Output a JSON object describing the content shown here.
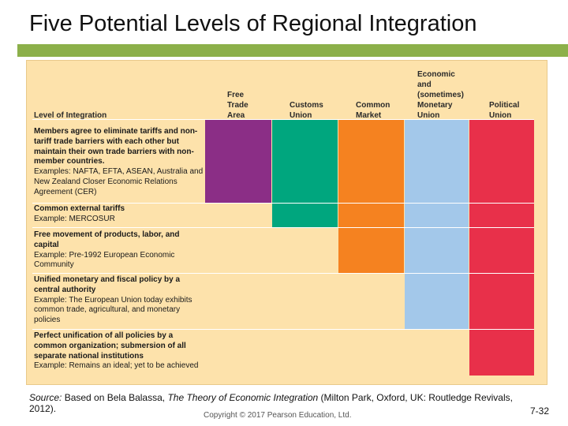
{
  "title": "Five Potential Levels of Regional Integration",
  "header": {
    "level_of_integration": "Level of Integration",
    "columns": [
      {
        "lines": [
          "Free",
          "Trade",
          "Area"
        ],
        "color": "#8b2e86"
      },
      {
        "lines": [
          "Customs",
          "Union"
        ],
        "color": "#00a67e"
      },
      {
        "lines": [
          "Common",
          "Market"
        ],
        "color": "#f58220"
      },
      {
        "lines": [
          "Economic",
          "and",
          "(sometimes)",
          "Monetary",
          "Union"
        ],
        "color": "#a3c8ea"
      },
      {
        "lines": [
          "Political",
          "Union"
        ],
        "color": "#e8304a"
      }
    ]
  },
  "rows": [
    {
      "bold": "Members agree to eliminate tariffs and non-tariff trade barriers with each other but maintain their own trade barriers with non-member countries.",
      "example": "Examples: NAFTA, EFTA, ASEAN, Australia and New Zealand Closer Economic Relations Agreement (CER)"
    },
    {
      "bold": "Common external tariffs",
      "example": "Example: MERCOSUR"
    },
    {
      "bold": "Free movement of products, labor, and capital",
      "example": "Example: Pre-1992 European Economic Community"
    },
    {
      "bold": "Unified monetary and fiscal policy by a central authority",
      "example": "Example: The European Union today exhibits common trade, agricultural, and monetary policies"
    },
    {
      "bold": "Perfect unification of all policies by a common organization; submersion of all separate national institutions",
      "example": "Example: Remains an ideal; yet to be achieved"
    }
  ],
  "source": {
    "label": "Source:",
    "text_before": " Based on Bela Balassa, ",
    "book": "The Theory of Economic Integration",
    "text_after": " (Milton Park, Oxford, UK: Routledge Revivals, 2012)."
  },
  "copyright": "Copyright © 2017 Pearson Education, Ltd.",
  "page_number": "7-32"
}
